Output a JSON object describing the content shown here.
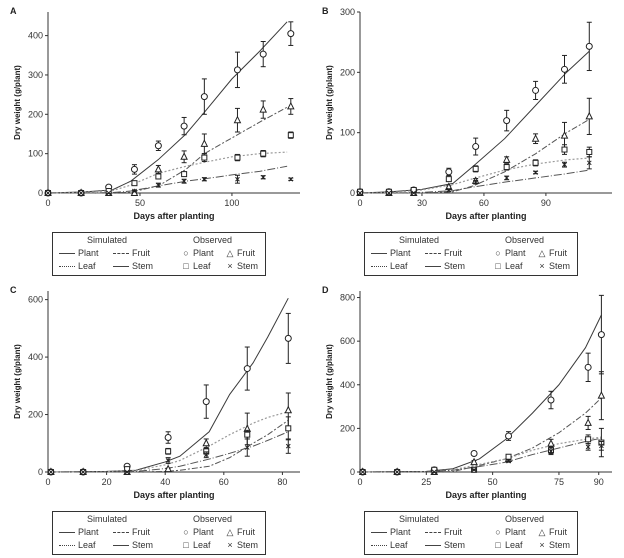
{
  "chart_data": [
    {
      "panel": "A",
      "type": "line",
      "xlabel": "Days after planting",
      "ylabel": "Dry weight (g/plant)",
      "xlim": [
        0,
        137
      ],
      "ylim": [
        0,
        460
      ],
      "xticks": [
        "0",
        "50",
        "100"
      ],
      "xtickvals": [
        0,
        50,
        100
      ],
      "yticks": [
        "0",
        "100",
        "200",
        "300",
        "400"
      ],
      "ytickvals": [
        0,
        100,
        200,
        300,
        400
      ],
      "simulated": {
        "x": [
          0,
          20,
          35,
          45,
          60,
          75,
          85,
          100,
          115,
          130
        ],
        "Plant": [
          0,
          3,
          8,
          30,
          85,
          150,
          205,
          290,
          360,
          435
        ],
        "Fruit": [
          0,
          0,
          0,
          2,
          18,
          60,
          100,
          140,
          180,
          218
        ],
        "Leaf": [
          0,
          2,
          6,
          20,
          50,
          68,
          78,
          92,
          100,
          104
        ],
        "Stem": [
          0,
          0,
          1,
          5,
          18,
          30,
          36,
          46,
          55,
          68
        ]
      },
      "observed": {
        "x": [
          0,
          18,
          33,
          47,
          60,
          74,
          85,
          103,
          117,
          132
        ],
        "Plant": [
          0,
          0,
          15,
          60,
          120,
          170,
          245,
          313,
          353,
          405
        ],
        "Plant_err": [
          0,
          0,
          3,
          12,
          12,
          22,
          45,
          45,
          32,
          30
        ],
        "Fruit": [
          0,
          0,
          0,
          0,
          60,
          92,
          125,
          185,
          212,
          220
        ],
        "Fruit_err": [
          0,
          0,
          0,
          0,
          10,
          15,
          25,
          30,
          22,
          20
        ],
        "Leaf": [
          0,
          0,
          5,
          25,
          42,
          48,
          90,
          90,
          100,
          147
        ],
        "Leaf_err": [
          0,
          0,
          2,
          5,
          5,
          5,
          10,
          8,
          8,
          8
        ],
        "Stem": [
          0,
          0,
          0,
          5,
          20,
          30,
          35,
          35,
          40,
          35
        ],
        "Stem_err": [
          0,
          0,
          0,
          2,
          5,
          5,
          4,
          10,
          4,
          3
        ]
      }
    },
    {
      "panel": "B",
      "type": "line",
      "xlabel": "Days after planting",
      "ylabel": "Dry weight (g/plant)",
      "xlim": [
        0,
        122
      ],
      "ylim": [
        0,
        300
      ],
      "xticks": [
        "0",
        "30",
        "60",
        "90"
      ],
      "xtickvals": [
        0,
        30,
        60,
        90
      ],
      "yticks": [
        "0",
        "100",
        "200",
        "300"
      ],
      "ytickvals": [
        0,
        100,
        200,
        300
      ],
      "simulated": {
        "x": [
          0,
          15,
          30,
          45,
          55,
          70,
          85,
          100,
          111
        ],
        "Plant": [
          0,
          2,
          6,
          16,
          45,
          90,
          145,
          200,
          235
        ],
        "Fruit": [
          0,
          0,
          0,
          2,
          12,
          35,
          65,
          100,
          122
        ],
        "Leaf": [
          0,
          1,
          5,
          14,
          24,
          38,
          48,
          55,
          58
        ],
        "Stem": [
          0,
          0,
          1,
          4,
          10,
          18,
          25,
          32,
          38
        ]
      },
      "observed": {
        "x": [
          0,
          14,
          26,
          43,
          56,
          71,
          85,
          99,
          111
        ],
        "Plant": [
          2,
          2,
          5,
          35,
          77,
          120,
          170,
          205,
          243
        ],
        "Plant_err": [
          0,
          0,
          0,
          6,
          14,
          17,
          15,
          23,
          40
        ],
        "Fruit": [
          0,
          0,
          0,
          10,
          20,
          55,
          90,
          95,
          127
        ],
        "Fruit_err": [
          0,
          0,
          0,
          2,
          4,
          5,
          8,
          22,
          30
        ],
        "Leaf": [
          2,
          2,
          5,
          23,
          40,
          43,
          50,
          72,
          68
        ],
        "Leaf_err": [
          0,
          0,
          0,
          3,
          5,
          5,
          5,
          8,
          8
        ],
        "Stem": [
          0,
          0,
          0,
          5,
          18,
          25,
          34,
          47,
          50
        ],
        "Stem_err": [
          0,
          0,
          0,
          2,
          3,
          3,
          2,
          4,
          10
        ]
      }
    },
    {
      "panel": "C",
      "type": "line",
      "xlabel": "Days after planting",
      "ylabel": "Dry weight (g/plant)",
      "xlim": [
        0,
        86
      ],
      "ylim": [
        0,
        630
      ],
      "xticks": [
        "0",
        "20",
        "40",
        "60",
        "80"
      ],
      "xtickvals": [
        0,
        20,
        40,
        60,
        80
      ],
      "yticks": [
        "0",
        "200",
        "400",
        "600"
      ],
      "ytickvals": [
        0,
        200,
        400,
        600
      ],
      "simulated": {
        "x": [
          0,
          20,
          30,
          40,
          45,
          55,
          62,
          70,
          75,
          82
        ],
        "Plant": [
          0,
          2,
          6,
          35,
          55,
          140,
          270,
          380,
          470,
          605
        ],
        "Fruit": [
          0,
          0,
          0,
          2,
          6,
          20,
          50,
          100,
          130,
          180
        ],
        "Leaf": [
          0,
          1,
          5,
          25,
          40,
          90,
          130,
          170,
          190,
          210
        ],
        "Stem": [
          0,
          0,
          2,
          12,
          20,
          45,
          65,
          90,
          110,
          140
        ]
      },
      "observed": {
        "x": [
          1,
          12,
          27,
          41,
          54,
          68,
          82
        ],
        "Plant": [
          0,
          0,
          20,
          120,
          245,
          360,
          465
        ],
        "Plant_err": [
          0,
          0,
          5,
          20,
          58,
          75,
          87
        ],
        "Fruit": [
          0,
          0,
          0,
          10,
          100,
          150,
          215
        ],
        "Fruit_err": [
          0,
          0,
          0,
          3,
          15,
          55,
          60
        ],
        "Leaf": [
          0,
          0,
          10,
          72,
          72,
          130,
          152
        ],
        "Leaf_err": [
          0,
          0,
          2,
          10,
          10,
          15,
          40
        ],
        "Stem": [
          0,
          0,
          0,
          40,
          60,
          85,
          90
        ],
        "Stem_err": [
          0,
          0,
          0,
          10,
          10,
          30,
          25
        ]
      }
    },
    {
      "panel": "D",
      "type": "line",
      "xlabel": "Days after planting",
      "ylabel": "Dry weight (g/plant)",
      "xlim": [
        0,
        95
      ],
      "ylim": [
        0,
        830
      ],
      "xticks": [
        "0",
        "25",
        "50",
        "75",
        "90"
      ],
      "xtickvals": [
        0,
        25,
        50,
        75,
        90
      ],
      "yticks": [
        "0",
        "200",
        "400",
        "600",
        "800"
      ],
      "ytickvals": [
        0,
        200,
        400,
        600,
        800
      ],
      "simulated": {
        "x": [
          0,
          25,
          35,
          45,
          55,
          65,
          75,
          85,
          91
        ],
        "Plant": [
          0,
          3,
          15,
          60,
          150,
          270,
          400,
          570,
          720
        ],
        "Fruit": [
          0,
          0,
          2,
          30,
          60,
          110,
          180,
          270,
          340
        ],
        "Leaf": [
          0,
          2,
          10,
          35,
          60,
          100,
          130,
          150,
          160
        ],
        "Stem": [
          0,
          1,
          8,
          25,
          45,
          80,
          110,
          140,
          155
        ]
      },
      "observed": {
        "x": [
          1,
          14,
          28,
          43,
          56,
          72,
          86,
          91
        ],
        "Plant": [
          0,
          0,
          10,
          85,
          165,
          330,
          480,
          630
        ],
        "Plant_err": [
          0,
          0,
          2,
          5,
          20,
          40,
          65,
          180
        ],
        "Fruit": [
          0,
          0,
          0,
          45,
          60,
          130,
          225,
          350
        ],
        "Fruit_err": [
          0,
          0,
          0,
          8,
          10,
          20,
          30,
          110
        ],
        "Leaf": [
          0,
          0,
          10,
          10,
          70,
          100,
          150,
          135
        ],
        "Leaf_err": [
          0,
          0,
          2,
          2,
          8,
          15,
          20,
          65
        ],
        "Stem": [
          0,
          0,
          0,
          10,
          50,
          95,
          115,
          120
        ],
        "Stem_err": [
          0,
          0,
          0,
          2,
          5,
          15,
          15,
          20
        ]
      }
    }
  ],
  "legend": {
    "simulated_title": "Simulated",
    "observed_title": "Observed",
    "series": [
      "Plant",
      "Fruit",
      "Leaf",
      "Stem"
    ]
  },
  "colors": {
    "Plant": "#3a3a3a",
    "Fruit": "#555555",
    "Leaf": "#9a9a9a",
    "Stem": "#555555"
  }
}
